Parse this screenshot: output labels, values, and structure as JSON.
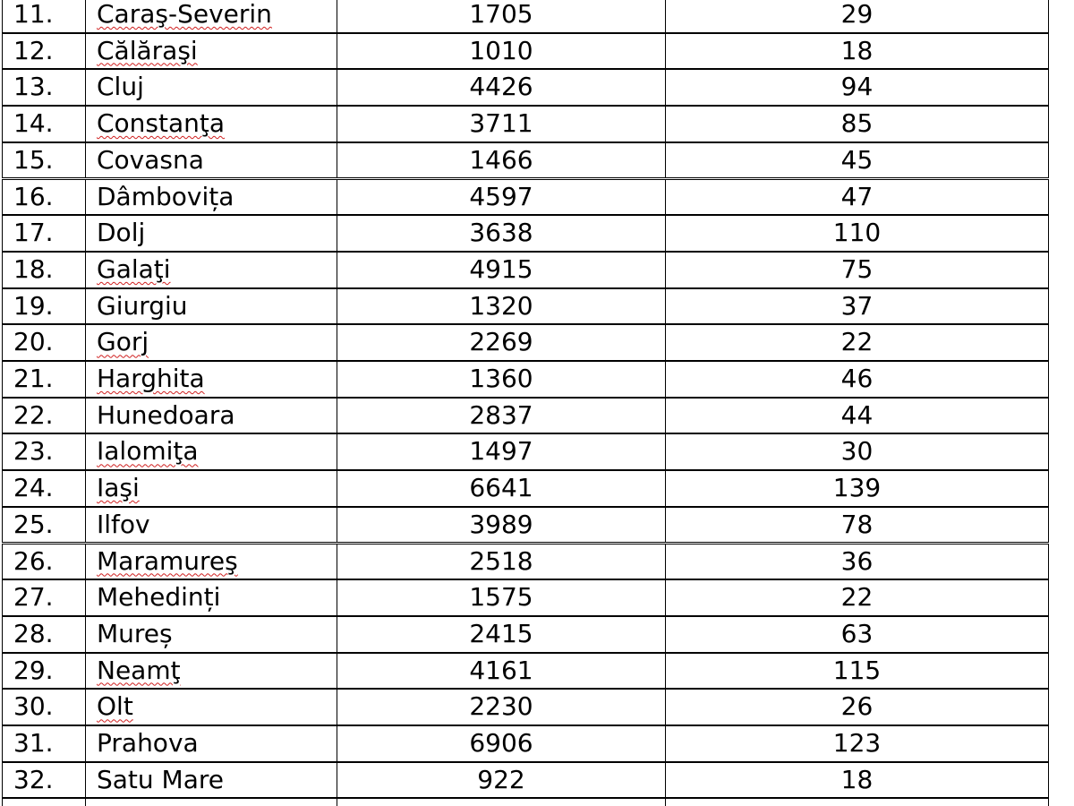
{
  "table": {
    "rows": [
      [
        "11.",
        "Caraş-Severin",
        1705,
        29
      ],
      [
        "12.",
        "Călăraşi",
        1010,
        18
      ],
      [
        "13.",
        "Cluj",
        4426,
        94
      ],
      [
        "14.",
        "Constanţa",
        3711,
        85
      ],
      [
        "15.",
        "Covasna",
        1466,
        45
      ],
      [
        "16.",
        "Dâmbovița",
        4597,
        47
      ],
      [
        "17.",
        "Dolj",
        3638,
        110
      ],
      [
        "18.",
        "Galaţi",
        4915,
        75
      ],
      [
        "19.",
        "Giurgiu",
        1320,
        37
      ],
      [
        "20.",
        "Gorj",
        2269,
        22
      ],
      [
        "21.",
        "Harghita",
        1360,
        46
      ],
      [
        "22.",
        "Hunedoara",
        2837,
        44
      ],
      [
        "23.",
        "Ialomiţa",
        1497,
        30
      ],
      [
        "24.",
        "Iaşi",
        6641,
        139
      ],
      [
        "25.",
        "Ilfov",
        3989,
        78
      ],
      [
        "26.",
        "Maramureş",
        2518,
        36
      ],
      [
        "27.",
        "Mehedinți",
        1575,
        22
      ],
      [
        "28.",
        "Mureș",
        2415,
        63
      ],
      [
        "29.",
        "Neamţ",
        4161,
        115
      ],
      [
        "30.",
        "Olt",
        2230,
        26
      ],
      [
        "31.",
        "Prahova",
        6906,
        123
      ],
      [
        "32.",
        "Satu Mare",
        922,
        18
      ]
    ]
  }
}
